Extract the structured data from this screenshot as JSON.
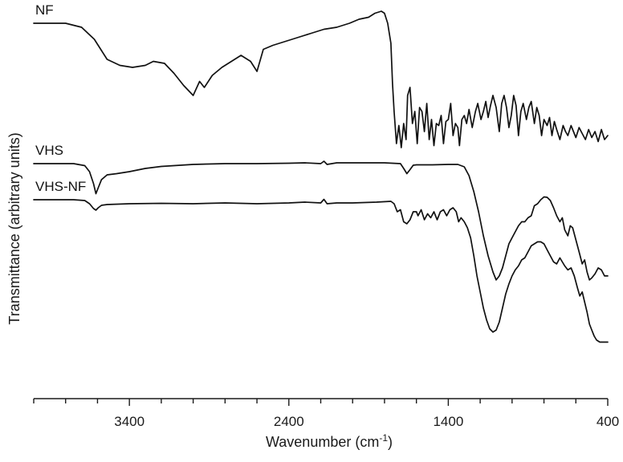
{
  "chart_data": {
    "type": "line",
    "xlabel": "Wavenumber (cm",
    "xlabel_sup": "-1",
    "xlabel_end": ")",
    "ylabel": "Transmittance (arbitrary units)",
    "xlim": [
      4000,
      400
    ],
    "x_reversed": true,
    "y_tick_labels": false,
    "grid": false,
    "xticks": [
      3400,
      2400,
      1400,
      400
    ],
    "minor_tick_step": 200,
    "series": [
      {
        "name": "NF",
        "offset": 2.0,
        "points": [
          [
            4000,
            9.0
          ],
          [
            3800,
            9.0
          ],
          [
            3700,
            8.9
          ],
          [
            3620,
            8.6
          ],
          [
            3540,
            8.1
          ],
          [
            3460,
            7.95
          ],
          [
            3380,
            7.9
          ],
          [
            3300,
            7.95
          ],
          [
            3250,
            8.05
          ],
          [
            3180,
            8.0
          ],
          [
            3120,
            7.75
          ],
          [
            3060,
            7.45
          ],
          [
            3000,
            7.2
          ],
          [
            2960,
            7.55
          ],
          [
            2930,
            7.4
          ],
          [
            2880,
            7.7
          ],
          [
            2820,
            7.9
          ],
          [
            2760,
            8.05
          ],
          [
            2700,
            8.2
          ],
          [
            2640,
            8.05
          ],
          [
            2600,
            7.8
          ],
          [
            2560,
            8.35
          ],
          [
            2500,
            8.45
          ],
          [
            2420,
            8.55
          ],
          [
            2340,
            8.65
          ],
          [
            2260,
            8.75
          ],
          [
            2180,
            8.85
          ],
          [
            2100,
            8.9
          ],
          [
            2020,
            9.0
          ],
          [
            1960,
            9.1
          ],
          [
            1900,
            9.15
          ],
          [
            1860,
            9.25
          ],
          [
            1820,
            9.3
          ],
          [
            1800,
            9.25
          ],
          [
            1780,
            9.0
          ],
          [
            1760,
            8.5
          ],
          [
            1750,
            7.5
          ],
          [
            1740,
            6.8
          ],
          [
            1725,
            6.0
          ],
          [
            1710,
            6.45
          ],
          [
            1695,
            5.9
          ],
          [
            1680,
            6.5
          ],
          [
            1665,
            6.1
          ],
          [
            1655,
            7.2
          ],
          [
            1640,
            7.4
          ],
          [
            1625,
            6.5
          ],
          [
            1610,
            6.8
          ],
          [
            1595,
            6.0
          ],
          [
            1580,
            6.9
          ],
          [
            1565,
            6.8
          ],
          [
            1550,
            6.3
          ],
          [
            1535,
            7.0
          ],
          [
            1520,
            6.1
          ],
          [
            1505,
            6.6
          ],
          [
            1490,
            5.95
          ],
          [
            1475,
            6.5
          ],
          [
            1460,
            6.45
          ],
          [
            1445,
            6.7
          ],
          [
            1430,
            6.0
          ],
          [
            1415,
            6.55
          ],
          [
            1400,
            6.6
          ],
          [
            1385,
            7.0
          ],
          [
            1370,
            6.2
          ],
          [
            1355,
            6.5
          ],
          [
            1340,
            6.4
          ],
          [
            1330,
            5.95
          ],
          [
            1315,
            6.6
          ],
          [
            1300,
            6.7
          ],
          [
            1285,
            6.5
          ],
          [
            1270,
            6.85
          ],
          [
            1250,
            6.4
          ],
          [
            1230,
            6.8
          ],
          [
            1215,
            7.0
          ],
          [
            1195,
            6.6
          ],
          [
            1180,
            6.8
          ],
          [
            1165,
            7.05
          ],
          [
            1150,
            6.65
          ],
          [
            1135,
            6.95
          ],
          [
            1120,
            7.2
          ],
          [
            1100,
            6.9
          ],
          [
            1080,
            6.3
          ],
          [
            1065,
            7.0
          ],
          [
            1050,
            7.2
          ],
          [
            1035,
            6.9
          ],
          [
            1020,
            6.4
          ],
          [
            1005,
            6.7
          ],
          [
            990,
            7.2
          ],
          [
            975,
            6.95
          ],
          [
            960,
            6.2
          ],
          [
            945,
            6.8
          ],
          [
            930,
            7.0
          ],
          [
            910,
            6.6
          ],
          [
            895,
            6.9
          ],
          [
            880,
            7.05
          ],
          [
            860,
            6.5
          ],
          [
            845,
            6.9
          ],
          [
            830,
            6.7
          ],
          [
            815,
            6.2
          ],
          [
            800,
            6.6
          ],
          [
            780,
            6.45
          ],
          [
            765,
            6.65
          ],
          [
            750,
            6.2
          ],
          [
            735,
            6.55
          ],
          [
            720,
            6.35
          ],
          [
            700,
            6.1
          ],
          [
            680,
            6.45
          ],
          [
            665,
            6.3
          ],
          [
            650,
            6.2
          ],
          [
            630,
            6.45
          ],
          [
            615,
            6.3
          ],
          [
            600,
            6.15
          ],
          [
            580,
            6.4
          ],
          [
            560,
            6.25
          ],
          [
            540,
            6.1
          ],
          [
            520,
            6.35
          ],
          [
            500,
            6.15
          ],
          [
            480,
            6.3
          ],
          [
            460,
            6.05
          ],
          [
            440,
            6.35
          ],
          [
            420,
            6.1
          ],
          [
            400,
            6.2
          ]
        ]
      },
      {
        "name": "VHS",
        "offset": 1.0,
        "points": [
          [
            4000,
            5.5
          ],
          [
            3750,
            5.5
          ],
          [
            3680,
            5.45
          ],
          [
            3650,
            5.3
          ],
          [
            3625,
            5.0
          ],
          [
            3610,
            4.75
          ],
          [
            3595,
            4.9
          ],
          [
            3575,
            5.1
          ],
          [
            3540,
            5.22
          ],
          [
            3480,
            5.25
          ],
          [
            3400,
            5.3
          ],
          [
            3300,
            5.38
          ],
          [
            3200,
            5.43
          ],
          [
            3000,
            5.48
          ],
          [
            2800,
            5.5
          ],
          [
            2600,
            5.5
          ],
          [
            2400,
            5.51
          ],
          [
            2300,
            5.52
          ],
          [
            2200,
            5.5
          ],
          [
            2180,
            5.56
          ],
          [
            2160,
            5.48
          ],
          [
            2100,
            5.52
          ],
          [
            2000,
            5.52
          ],
          [
            1800,
            5.52
          ],
          [
            1700,
            5.5
          ],
          [
            1680,
            5.38
          ],
          [
            1660,
            5.25
          ],
          [
            1640,
            5.35
          ],
          [
            1620,
            5.46
          ],
          [
            1600,
            5.47
          ],
          [
            1500,
            5.47
          ],
          [
            1400,
            5.48
          ],
          [
            1340,
            5.48
          ],
          [
            1300,
            5.42
          ],
          [
            1270,
            5.2
          ],
          [
            1240,
            4.8
          ],
          [
            1210,
            4.3
          ],
          [
            1180,
            3.7
          ],
          [
            1150,
            3.2
          ],
          [
            1120,
            2.8
          ],
          [
            1100,
            2.6
          ],
          [
            1080,
            2.7
          ],
          [
            1060,
            2.9
          ],
          [
            1040,
            3.2
          ],
          [
            1020,
            3.5
          ],
          [
            1000,
            3.65
          ],
          [
            980,
            3.8
          ],
          [
            960,
            3.95
          ],
          [
            940,
            4.05
          ],
          [
            920,
            4.05
          ],
          [
            900,
            4.15
          ],
          [
            880,
            4.2
          ],
          [
            860,
            4.45
          ],
          [
            840,
            4.5
          ],
          [
            820,
            4.6
          ],
          [
            800,
            4.67
          ],
          [
            780,
            4.66
          ],
          [
            760,
            4.58
          ],
          [
            740,
            4.4
          ],
          [
            720,
            4.2
          ],
          [
            700,
            4.05
          ],
          [
            685,
            4.15
          ],
          [
            670,
            3.85
          ],
          [
            650,
            3.7
          ],
          [
            635,
            3.95
          ],
          [
            620,
            3.9
          ],
          [
            600,
            3.6
          ],
          [
            580,
            3.3
          ],
          [
            560,
            3.0
          ],
          [
            545,
            3.1
          ],
          [
            530,
            2.8
          ],
          [
            515,
            2.6
          ],
          [
            500,
            2.65
          ],
          [
            480,
            2.75
          ],
          [
            460,
            2.9
          ],
          [
            440,
            2.85
          ],
          [
            420,
            2.7
          ],
          [
            400,
            2.7
          ]
        ]
      },
      {
        "name": "VHS-NF",
        "offset": 0.0,
        "points": [
          [
            4000,
            4.6
          ],
          [
            3750,
            4.6
          ],
          [
            3680,
            4.58
          ],
          [
            3650,
            4.5
          ],
          [
            3625,
            4.38
          ],
          [
            3610,
            4.34
          ],
          [
            3595,
            4.4
          ],
          [
            3575,
            4.46
          ],
          [
            3540,
            4.48
          ],
          [
            3400,
            4.5
          ],
          [
            3200,
            4.51
          ],
          [
            3000,
            4.5
          ],
          [
            2800,
            4.52
          ],
          [
            2600,
            4.5
          ],
          [
            2400,
            4.52
          ],
          [
            2300,
            4.54
          ],
          [
            2200,
            4.52
          ],
          [
            2180,
            4.61
          ],
          [
            2160,
            4.5
          ],
          [
            2100,
            4.52
          ],
          [
            2000,
            4.52
          ],
          [
            1850,
            4.54
          ],
          [
            1760,
            4.56
          ],
          [
            1740,
            4.5
          ],
          [
            1720,
            4.3
          ],
          [
            1700,
            4.35
          ],
          [
            1680,
            4.05
          ],
          [
            1660,
            4.0
          ],
          [
            1640,
            4.1
          ],
          [
            1620,
            4.3
          ],
          [
            1600,
            4.3
          ],
          [
            1590,
            4.2
          ],
          [
            1570,
            4.35
          ],
          [
            1550,
            4.1
          ],
          [
            1530,
            4.25
          ],
          [
            1510,
            4.15
          ],
          [
            1490,
            4.3
          ],
          [
            1470,
            4.1
          ],
          [
            1450,
            4.3
          ],
          [
            1430,
            4.35
          ],
          [
            1410,
            4.2
          ],
          [
            1390,
            4.35
          ],
          [
            1370,
            4.4
          ],
          [
            1350,
            4.3
          ],
          [
            1335,
            4.05
          ],
          [
            1320,
            4.15
          ],
          [
            1300,
            4.05
          ],
          [
            1280,
            3.9
          ],
          [
            1260,
            3.65
          ],
          [
            1240,
            3.2
          ],
          [
            1220,
            2.7
          ],
          [
            1200,
            2.3
          ],
          [
            1180,
            1.9
          ],
          [
            1160,
            1.6
          ],
          [
            1140,
            1.38
          ],
          [
            1120,
            1.3
          ],
          [
            1100,
            1.35
          ],
          [
            1080,
            1.55
          ],
          [
            1060,
            1.9
          ],
          [
            1040,
            2.25
          ],
          [
            1020,
            2.5
          ],
          [
            1000,
            2.7
          ],
          [
            980,
            2.85
          ],
          [
            960,
            2.95
          ],
          [
            940,
            3.1
          ],
          [
            920,
            3.15
          ],
          [
            900,
            3.3
          ],
          [
            880,
            3.45
          ],
          [
            860,
            3.5
          ],
          [
            840,
            3.55
          ],
          [
            820,
            3.55
          ],
          [
            800,
            3.5
          ],
          [
            780,
            3.35
          ],
          [
            760,
            3.2
          ],
          [
            740,
            3.05
          ],
          [
            720,
            3.0
          ],
          [
            700,
            3.15
          ],
          [
            685,
            3.05
          ],
          [
            670,
            2.95
          ],
          [
            650,
            2.85
          ],
          [
            630,
            2.9
          ],
          [
            610,
            2.7
          ],
          [
            590,
            2.4
          ],
          [
            575,
            2.2
          ],
          [
            560,
            2.3
          ],
          [
            545,
            2.05
          ],
          [
            530,
            1.8
          ],
          [
            515,
            1.5
          ],
          [
            500,
            1.35
          ],
          [
            485,
            1.2
          ],
          [
            470,
            1.1
          ],
          [
            450,
            1.05
          ],
          [
            430,
            1.05
          ],
          [
            400,
            1.05
          ]
        ]
      }
    ]
  }
}
